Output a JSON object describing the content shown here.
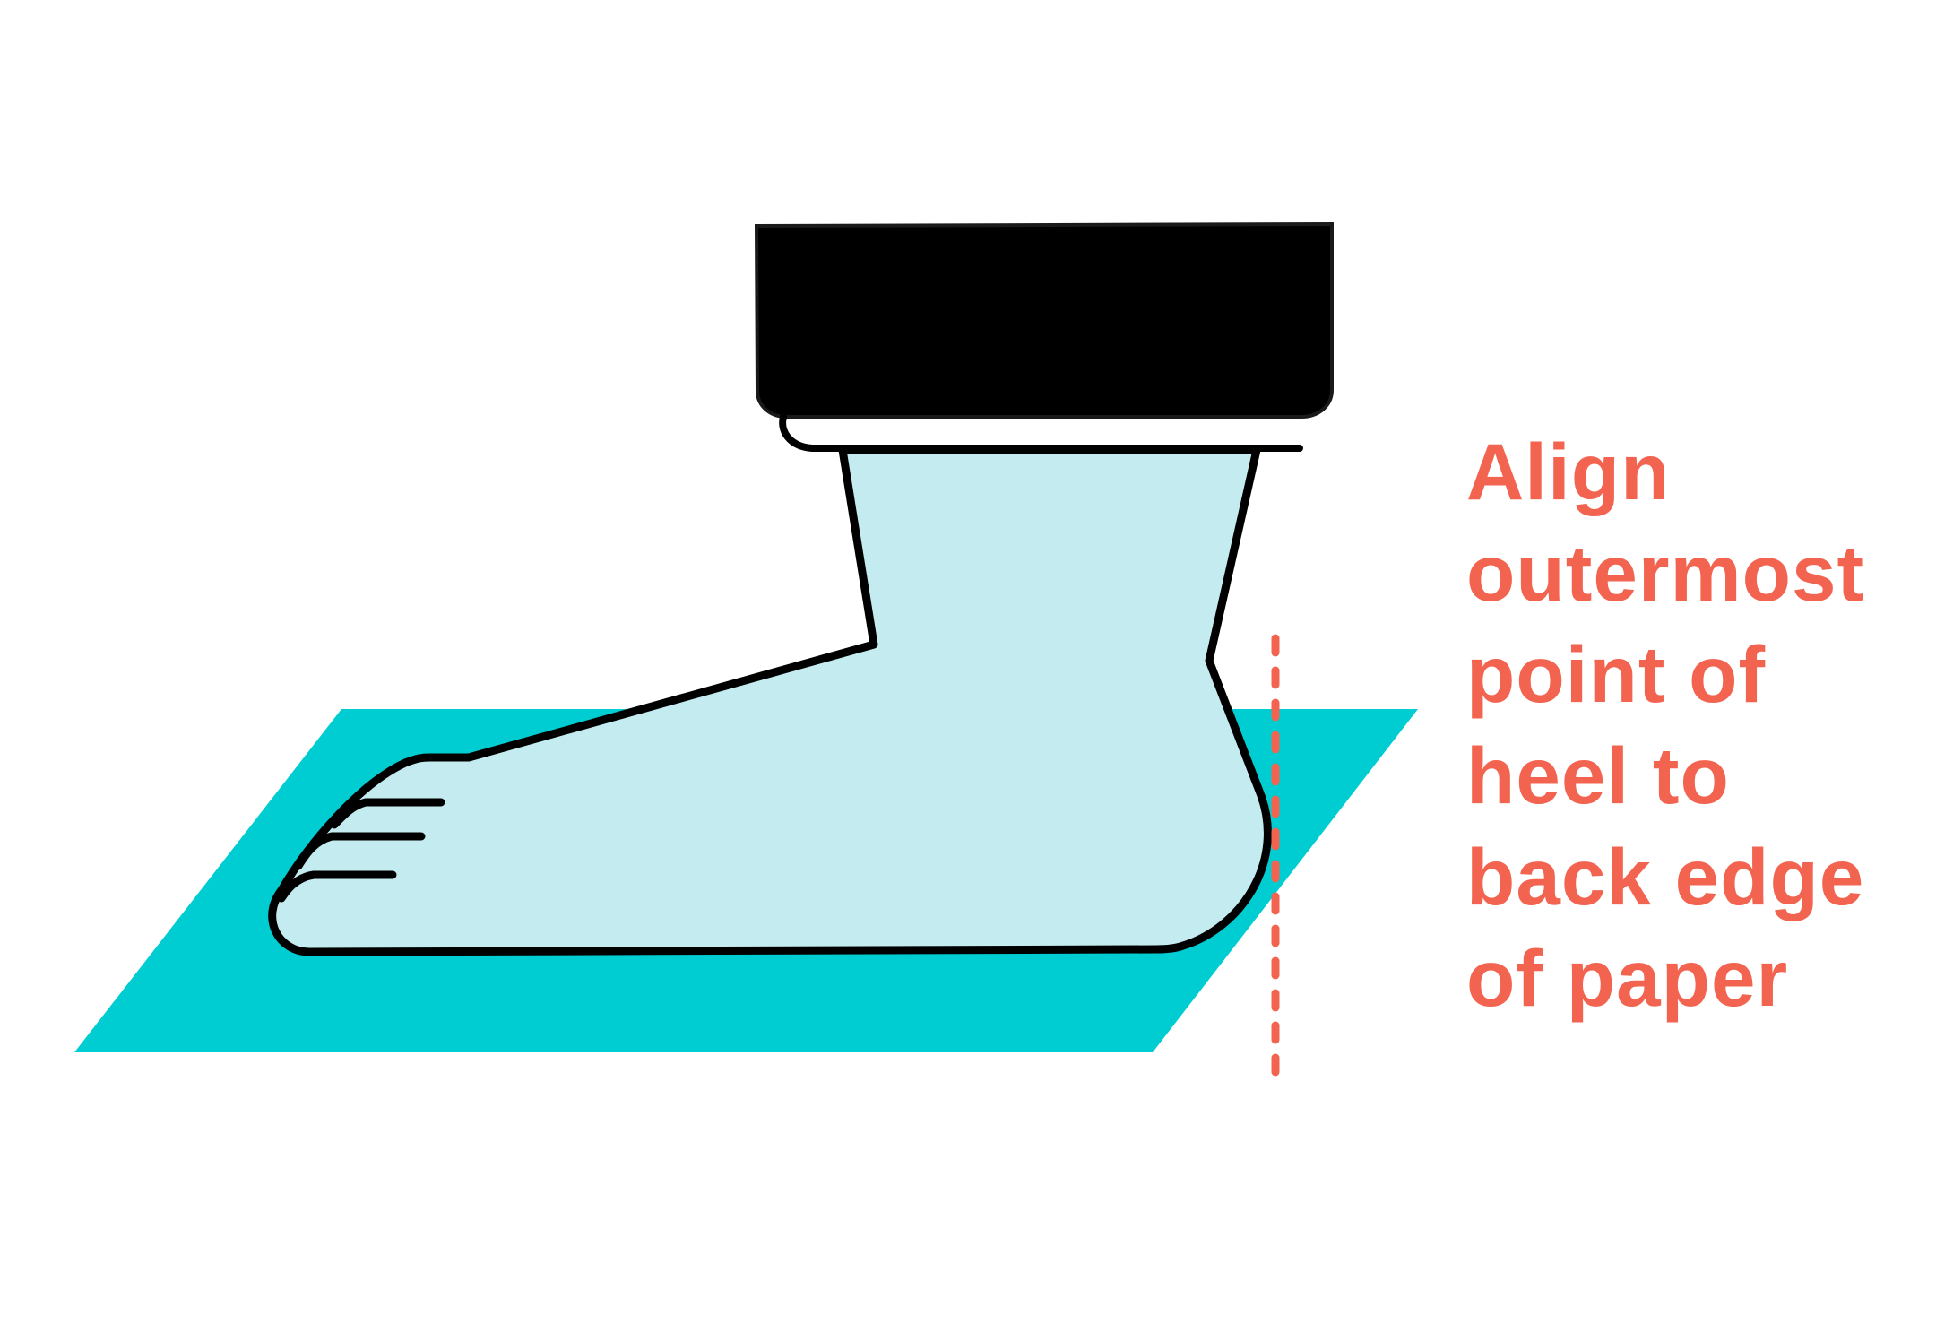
{
  "instruction": {
    "lines": [
      "Align",
      "outermost",
      "point of",
      "heel to",
      "back edge",
      "of paper"
    ]
  },
  "colors": {
    "paper": "#00cdd2",
    "foot_fill": "#c4ecf0",
    "outline": "#000000",
    "guide_line": "#f26450",
    "instruction_text": "#f26450",
    "background": "#ffffff"
  },
  "icons": {
    "paper": "paper-sheet",
    "foot": "foot-in-sock",
    "boot_cuff": "pant-leg-cuff",
    "guide": "dashed-alignment-line"
  }
}
